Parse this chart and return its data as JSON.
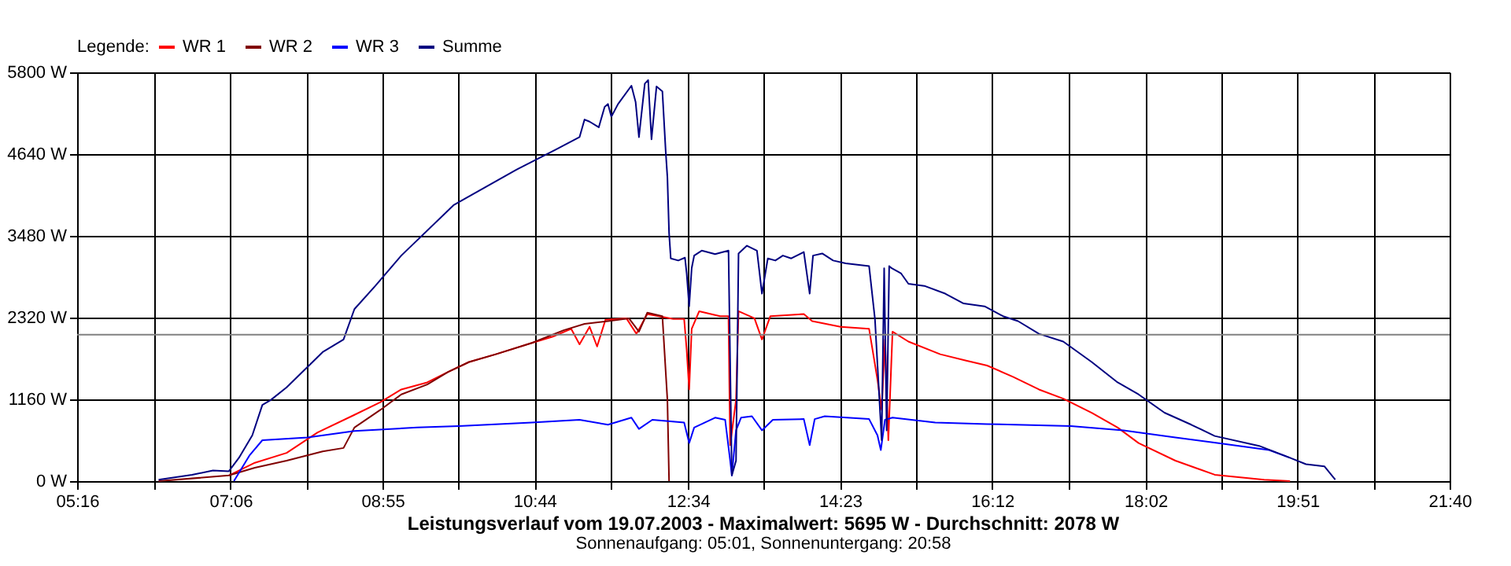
{
  "chart_data": {
    "type": "line",
    "title": "Leistungsverlauf vom 19.07.2003 - Maximalwert: 5695 W - Durchschnitt: 2078 W",
    "subtitle": "Sonnenaufgang: 05:01, Sonnenuntergang: 20:58",
    "legend_title": "Legende:",
    "legend": "top left",
    "grid": true,
    "marker": "none",
    "line_style": "solid",
    "xlim": [
      5.2667,
      21.6667
    ],
    "xticks": [
      {
        "value": 5.2667,
        "label": "05:16"
      },
      {
        "value": 6.1833,
        "label": null
      },
      {
        "value": 7.1,
        "label": "07:06"
      },
      {
        "value": 8.0083,
        "label": null
      },
      {
        "value": 8.9167,
        "label": "08:55"
      },
      {
        "value": 9.825,
        "label": null
      },
      {
        "value": 10.7333,
        "label": "10:44"
      },
      {
        "value": 11.65,
        "label": null
      },
      {
        "value": 12.5667,
        "label": "12:34"
      },
      {
        "value": 13.475,
        "label": null
      },
      {
        "value": 14.3833,
        "label": "14:23"
      },
      {
        "value": 15.2917,
        "label": null
      },
      {
        "value": 16.2,
        "label": "16:12"
      },
      {
        "value": 17.1167,
        "label": null
      },
      {
        "value": 18.0333,
        "label": "18:02"
      },
      {
        "value": 18.9417,
        "label": null
      },
      {
        "value": 19.85,
        "label": "19:51"
      },
      {
        "value": 20.7583,
        "label": null
      },
      {
        "value": 21.6667,
        "label": "21:40"
      }
    ],
    "ylim": [
      0,
      5800
    ],
    "yticks": [
      {
        "value": 0,
        "label": "0 W"
      },
      {
        "value": 1160,
        "label": "1160 W"
      },
      {
        "value": 2320,
        "label": "2320 W"
      },
      {
        "value": 3480,
        "label": "3480 W"
      },
      {
        "value": 4640,
        "label": "4640 W"
      },
      {
        "value": 5800,
        "label": "5800 W"
      }
    ],
    "ref_lines": [
      {
        "axis": "y",
        "value": 2078,
        "color": "#808080"
      }
    ],
    "series": [
      {
        "name": "WR 1",
        "color": "#ff0000",
        "x": [
          7.08,
          7.39,
          7.77,
          8.14,
          8.58,
          8.89,
          9.14,
          9.45,
          9.7,
          9.95,
          10.27,
          10.7,
          10.95,
          11.17,
          11.27,
          11.39,
          11.48,
          11.58,
          11.83,
          11.95,
          12.08,
          12.39,
          12.52,
          12.55,
          12.58,
          12.61,
          12.7,
          12.95,
          13.05,
          13.07,
          13.14,
          13.17,
          13.36,
          13.45,
          13.55,
          13.95,
          14.05,
          14.39,
          14.73,
          14.83,
          14.88,
          14.92,
          14.96,
          15.01,
          15.2,
          15.58,
          15.89,
          16.14,
          16.45,
          16.76,
          17.05,
          17.39,
          17.7,
          17.95,
          18.39,
          18.86,
          19.45,
          19.76
        ],
        "values": [
          80,
          260,
          400,
          690,
          940,
          1120,
          1300,
          1400,
          1550,
          1690,
          1800,
          1960,
          2050,
          2160,
          1940,
          2190,
          1910,
          2290,
          2310,
          2090,
          2370,
          2300,
          2300,
          1870,
          1300,
          2160,
          2410,
          2340,
          2340,
          510,
          1150,
          2410,
          2310,
          2010,
          2340,
          2370,
          2270,
          2190,
          2160,
          1440,
          1010,
          2010,
          580,
          2120,
          1980,
          1800,
          1710,
          1640,
          1480,
          1300,
          1170,
          970,
          760,
          540,
          290,
          90,
          20,
          0
        ]
      },
      {
        "name": "WR 2",
        "color": "#800000",
        "x": [
          6.24,
          7.08,
          7.39,
          7.77,
          8.2,
          8.45,
          8.58,
          8.89,
          9.14,
          9.45,
          9.7,
          9.95,
          10.27,
          10.7,
          11.08,
          11.33,
          11.61,
          11.86,
          11.98,
          12.08,
          12.26,
          12.32,
          12.34
        ],
        "values": [
          0,
          80,
          190,
          290,
          420,
          470,
          760,
          1010,
          1230,
          1370,
          1550,
          1690,
          1800,
          1960,
          2140,
          2230,
          2270,
          2310,
          2120,
          2390,
          2340,
          1150,
          0
        ]
      },
      {
        "name": "WR 3",
        "color": "#0000ff",
        "x": [
          7.14,
          7.33,
          7.48,
          8.02,
          8.58,
          9.33,
          9.83,
          10.7,
          11.27,
          11.61,
          11.89,
          11.98,
          12.14,
          12.52,
          12.58,
          12.64,
          12.89,
          13.01,
          13.07,
          13.09,
          13.14,
          13.2,
          13.33,
          13.45,
          13.58,
          13.95,
          14.02,
          14.08,
          14.2,
          14.73,
          14.83,
          14.87,
          14.92,
          15.01,
          15.52,
          16.14,
          17.14,
          17.77,
          18.39,
          18.89,
          19.51,
          19.76
        ],
        "values": [
          0,
          370,
          580,
          620,
          710,
          760,
          780,
          830,
          870,
          800,
          900,
          740,
          870,
          830,
          540,
          760,
          900,
          870,
          290,
          80,
          720,
          900,
          920,
          720,
          870,
          880,
          510,
          880,
          920,
          880,
          650,
          440,
          870,
          900,
          830,
          810,
          780,
          720,
          620,
          540,
          440,
          330
        ]
      },
      {
        "name": "Summe",
        "color": "#000080",
        "x": [
          6.24,
          6.64,
          6.89,
          7.08,
          7.2,
          7.36,
          7.48,
          7.58,
          7.77,
          8.02,
          8.2,
          8.45,
          8.58,
          8.83,
          9.14,
          9.77,
          10.52,
          10.98,
          11.27,
          11.33,
          11.39,
          11.5,
          11.57,
          11.61,
          11.65,
          11.73,
          11.89,
          11.94,
          11.98,
          12.05,
          12.09,
          12.13,
          12.19,
          12.26,
          12.3,
          12.32,
          12.34,
          12.36,
          12.45,
          12.53,
          12.55,
          12.58,
          12.61,
          12.64,
          12.73,
          12.89,
          13.05,
          13.08,
          13.09,
          13.14,
          13.17,
          13.27,
          13.39,
          13.45,
          13.52,
          13.61,
          13.7,
          13.8,
          13.95,
          14.02,
          14.06,
          14.17,
          14.3,
          14.45,
          14.73,
          14.8,
          14.86,
          14.88,
          14.91,
          14.94,
          14.97,
          15.0,
          15.11,
          15.2,
          15.39,
          15.64,
          15.86,
          16.11,
          16.33,
          16.51,
          16.76,
          17.05,
          17.39,
          17.7,
          17.95,
          18.26,
          18.58,
          18.86,
          19.39,
          19.76,
          19.95,
          20.17,
          20.3
        ],
        "values": [
          20,
          90,
          150,
          140,
          330,
          650,
          1080,
          1150,
          1330,
          1620,
          1830,
          2010,
          2440,
          2770,
          3200,
          3920,
          4420,
          4700,
          4880,
          5130,
          5100,
          5020,
          5310,
          5350,
          5170,
          5350,
          5610,
          5380,
          4880,
          5640,
          5690,
          4850,
          5600,
          5530,
          4670,
          4310,
          3520,
          3160,
          3130,
          3170,
          2950,
          2480,
          3020,
          3200,
          3270,
          3220,
          3270,
          870,
          80,
          290,
          3230,
          3340,
          3270,
          2660,
          3160,
          3130,
          3200,
          3160,
          3250,
          2660,
          3200,
          3230,
          3130,
          3090,
          3050,
          2300,
          1010,
          580,
          3020,
          720,
          3050,
          3020,
          2950,
          2800,
          2770,
          2660,
          2520,
          2480,
          2340,
          2270,
          2090,
          1980,
          1690,
          1400,
          1230,
          970,
          800,
          640,
          500,
          330,
          240,
          210,
          20
        ]
      }
    ]
  }
}
